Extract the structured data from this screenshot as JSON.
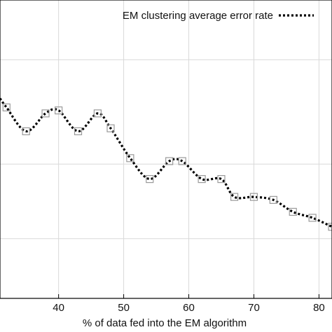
{
  "chart_data": {
    "type": "line",
    "title": "",
    "xlabel": "% of data fed into the EM algorithm",
    "ylabel": "",
    "xlim": [
      31,
      82
    ],
    "ylim": [
      0,
      1
    ],
    "x_ticks": [
      40,
      50,
      60,
      70,
      80
    ],
    "grid": true,
    "legend_position": "top-right",
    "series": [
      {
        "name": "EM clustering average error rate",
        "style": "dotted",
        "color": "#000000",
        "marker": "square",
        "marker_color": "#9a9a9a",
        "x": [
          31,
          32,
          35,
          38,
          40,
          43,
          46,
          48,
          51,
          54,
          57,
          59,
          62,
          65,
          67,
          70,
          73,
          76,
          79,
          82
        ],
        "y": [
          0.67,
          0.64,
          0.56,
          0.62,
          0.63,
          0.56,
          0.62,
          0.57,
          0.47,
          0.4,
          0.46,
          0.46,
          0.4,
          0.4,
          0.34,
          0.34,
          0.33,
          0.29,
          0.27,
          0.24
        ],
        "markers_x": [
          32,
          35,
          38,
          40,
          43,
          46,
          48,
          51,
          54,
          57,
          59,
          62,
          65,
          67,
          70,
          73,
          76,
          79,
          82
        ]
      }
    ]
  }
}
